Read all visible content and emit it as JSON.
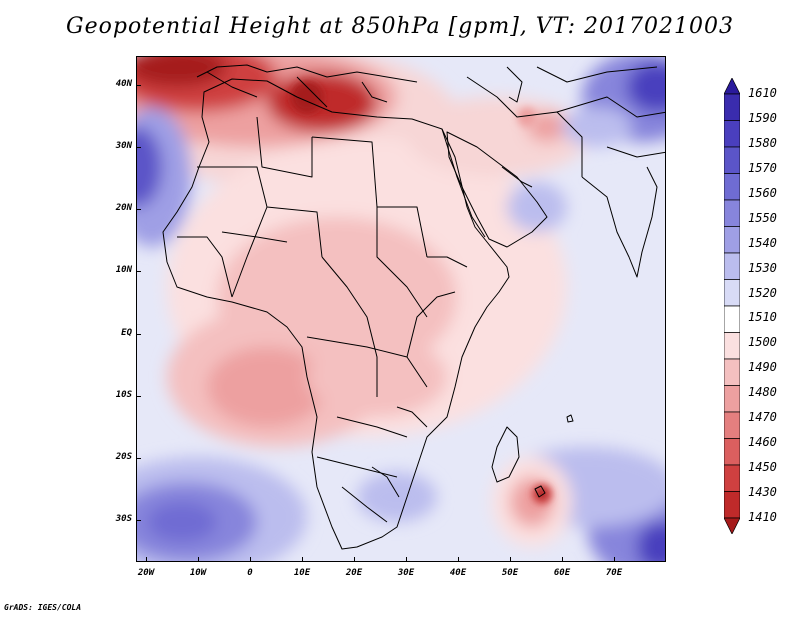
{
  "title": "Geopotential Height at 850hPa [gpm], VT: 2017021003",
  "footer": "GrADS: IGES/COLA",
  "map": {
    "y_labels": [
      "40N",
      "30N",
      "20N",
      "10N",
      "EQ",
      "10S",
      "20S",
      "30S"
    ],
    "x_labels": [
      "20W",
      "10W",
      "0",
      "10E",
      "20E",
      "30E",
      "40E",
      "50E",
      "60E",
      "70E"
    ],
    "lat_range": [
      -37,
      44
    ],
    "lon_range": [
      -22,
      79
    ],
    "ocean_value": 1520
  },
  "colorbar": {
    "labels": [
      "1610",
      "1590",
      "1580",
      "1570",
      "1560",
      "1550",
      "1540",
      "1530",
      "1520",
      "1510",
      "1500",
      "1490",
      "1480",
      "1470",
      "1460",
      "1450",
      "1430",
      "1410"
    ],
    "colors": [
      "#2a1a9c",
      "#3a2cae",
      "#4a3fbe",
      "#5b55c8",
      "#6f6cd3",
      "#8785dc",
      "#9f9fe5",
      "#bbbdee",
      "#d8dbf6",
      "#ffffff",
      "#fbe0e0",
      "#f4c0c0",
      "#eda0a0",
      "#e47f7f",
      "#db5f5f",
      "#cf4040",
      "#bf2a2a",
      "#a51a1a"
    ]
  }
}
